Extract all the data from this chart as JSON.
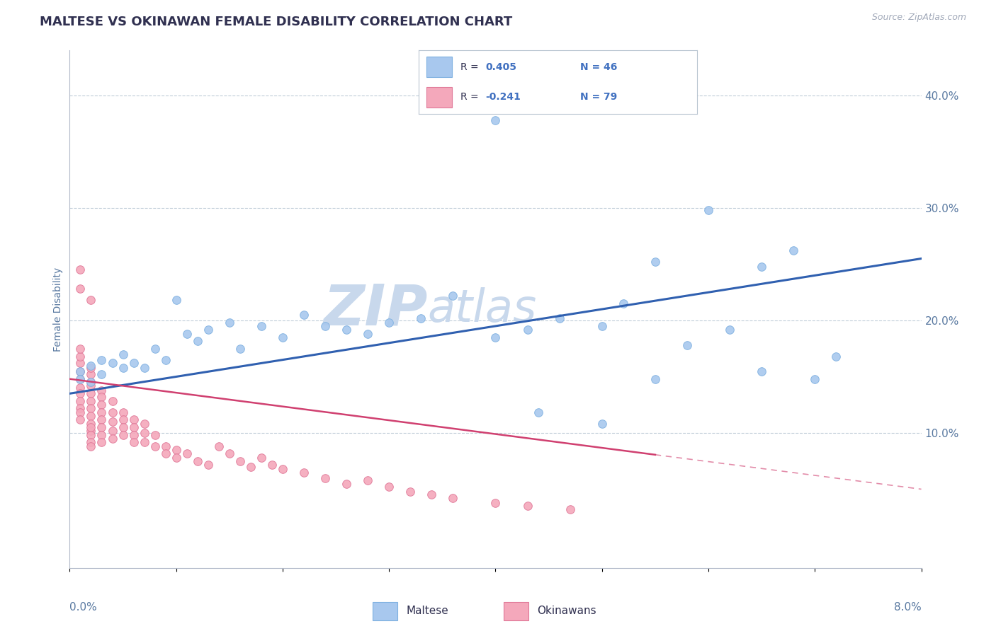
{
  "title": "MALTESE VS OKINAWAN FEMALE DISABILITY CORRELATION CHART",
  "source_text": "Source: ZipAtlas.com",
  "ylabel": "Female Disability",
  "right_yticks": [
    0.1,
    0.2,
    0.3,
    0.4
  ],
  "right_yticklabels": [
    "10.0%",
    "20.0%",
    "30.0%",
    "40.0%"
  ],
  "xlim": [
    0.0,
    0.08
  ],
  "ylim": [
    -0.02,
    0.44
  ],
  "maltese_R": 0.405,
  "maltese_N": 46,
  "okinawan_R": -0.241,
  "okinawan_N": 79,
  "maltese_color": "#A8C8EE",
  "maltese_edge": "#7EB0E0",
  "okinawan_color": "#F4A8BB",
  "okinawan_edge": "#E07898",
  "maltese_line_color": "#3060B0",
  "okinawan_line_color": "#D04070",
  "watermark_main": "ZIP",
  "watermark_sub": "atlas",
  "watermark_color": "#C8D8EC",
  "background_color": "#FFFFFF",
  "grid_color": "#C0CCD8",
  "title_color": "#303050",
  "axis_label_color": "#5878A0",
  "legend_R_color": "#4070C0",
  "legend_N_color": "#303050",
  "maltese_line_x0": 0.0,
  "maltese_line_y0": 0.135,
  "maltese_line_x1": 0.08,
  "maltese_line_y1": 0.255,
  "okinawan_line_x0": 0.0,
  "okinawan_line_y0": 0.148,
  "okinawan_line_x1": 0.08,
  "okinawan_line_y1": 0.05,
  "maltese_scatter_x": [
    0.001,
    0.001,
    0.002,
    0.002,
    0.003,
    0.003,
    0.004,
    0.005,
    0.005,
    0.006,
    0.007,
    0.008,
    0.009,
    0.01,
    0.011,
    0.012,
    0.013,
    0.015,
    0.016,
    0.018,
    0.02,
    0.022,
    0.024,
    0.026,
    0.028,
    0.03,
    0.033,
    0.036,
    0.04,
    0.043,
    0.046,
    0.05,
    0.052,
    0.055,
    0.058,
    0.062,
    0.065,
    0.068,
    0.07,
    0.072,
    0.04,
    0.044,
    0.05,
    0.055,
    0.06,
    0.065
  ],
  "maltese_scatter_y": [
    0.155,
    0.148,
    0.16,
    0.145,
    0.165,
    0.152,
    0.162,
    0.158,
    0.17,
    0.162,
    0.158,
    0.175,
    0.165,
    0.218,
    0.188,
    0.182,
    0.192,
    0.198,
    0.175,
    0.195,
    0.185,
    0.205,
    0.195,
    0.192,
    0.188,
    0.198,
    0.202,
    0.222,
    0.185,
    0.192,
    0.202,
    0.195,
    0.215,
    0.252,
    0.178,
    0.192,
    0.155,
    0.262,
    0.148,
    0.168,
    0.378,
    0.118,
    0.108,
    0.148,
    0.298,
    0.248
  ],
  "okinawan_scatter_x": [
    0.001,
    0.001,
    0.001,
    0.001,
    0.001,
    0.001,
    0.001,
    0.001,
    0.001,
    0.001,
    0.001,
    0.002,
    0.002,
    0.002,
    0.002,
    0.002,
    0.002,
    0.002,
    0.002,
    0.002,
    0.002,
    0.002,
    0.002,
    0.002,
    0.002,
    0.003,
    0.003,
    0.003,
    0.003,
    0.003,
    0.003,
    0.003,
    0.003,
    0.004,
    0.004,
    0.004,
    0.004,
    0.004,
    0.005,
    0.005,
    0.005,
    0.005,
    0.006,
    0.006,
    0.006,
    0.006,
    0.007,
    0.007,
    0.007,
    0.008,
    0.008,
    0.009,
    0.009,
    0.01,
    0.01,
    0.011,
    0.012,
    0.013,
    0.014,
    0.015,
    0.016,
    0.017,
    0.018,
    0.019,
    0.02,
    0.022,
    0.024,
    0.026,
    0.028,
    0.03,
    0.032,
    0.034,
    0.036,
    0.04,
    0.043,
    0.047,
    0.001,
    0.001,
    0.002
  ],
  "okinawan_scatter_y": [
    0.148,
    0.155,
    0.162,
    0.168,
    0.175,
    0.14,
    0.135,
    0.128,
    0.122,
    0.118,
    0.112,
    0.145,
    0.152,
    0.158,
    0.135,
    0.128,
    0.122,
    0.115,
    0.108,
    0.102,
    0.098,
    0.092,
    0.088,
    0.142,
    0.105,
    0.138,
    0.132,
    0.125,
    0.118,
    0.112,
    0.105,
    0.098,
    0.092,
    0.128,
    0.118,
    0.11,
    0.102,
    0.095,
    0.118,
    0.112,
    0.105,
    0.098,
    0.112,
    0.105,
    0.098,
    0.092,
    0.108,
    0.1,
    0.092,
    0.098,
    0.088,
    0.088,
    0.082,
    0.085,
    0.078,
    0.082,
    0.075,
    0.072,
    0.088,
    0.082,
    0.075,
    0.07,
    0.078,
    0.072,
    0.068,
    0.065,
    0.06,
    0.055,
    0.058,
    0.052,
    0.048,
    0.045,
    0.042,
    0.038,
    0.035,
    0.032,
    0.245,
    0.228,
    0.218
  ]
}
